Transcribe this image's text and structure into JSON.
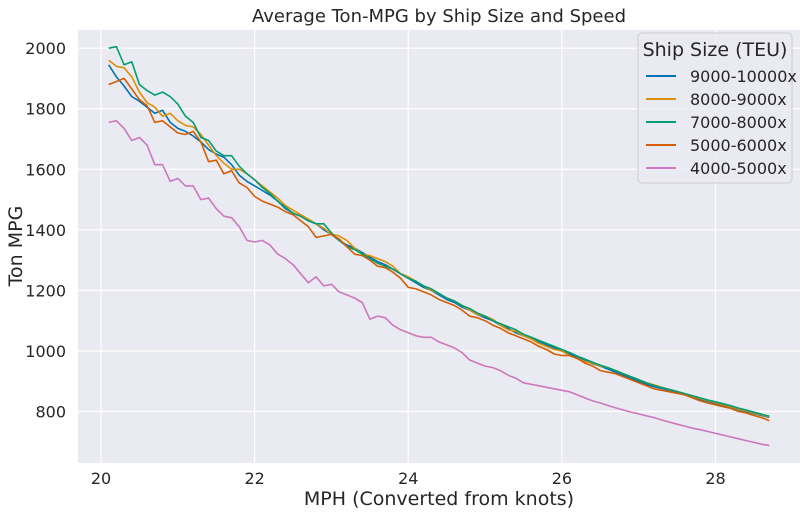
{
  "chart_data": {
    "type": "line",
    "title": "Average Ton-MPG by Ship Size and Speed",
    "xlabel": "MPH (Converted from knots)",
    "ylabel": "Ton MPG",
    "xlim": [
      19.7,
      29.1
    ],
    "ylim": [
      630,
      2060
    ],
    "xticks": [
      20,
      22,
      24,
      26,
      28
    ],
    "yticks": [
      800,
      1000,
      1200,
      1400,
      1600,
      1800,
      2000
    ],
    "grid": true,
    "background": "#eaeaf2",
    "legend": {
      "title": "Ship Size (TEU)",
      "placement": "top-right"
    },
    "x": [
      20.1,
      20.2,
      20.3,
      20.4,
      20.5,
      20.6,
      20.7,
      20.8,
      20.9,
      21.0,
      21.1,
      21.2,
      21.3,
      21.4,
      21.5,
      21.6,
      21.7,
      21.8,
      21.9,
      22.0,
      22.1,
      22.2,
      22.3,
      22.4,
      22.5,
      22.6,
      22.7,
      22.8,
      22.9,
      23.0,
      23.1,
      23.2,
      23.3,
      23.4,
      23.5,
      23.6,
      23.7,
      23.8,
      23.9,
      24.0,
      24.1,
      24.2,
      24.3,
      24.4,
      24.5,
      24.6,
      24.7,
      24.8,
      24.9,
      25.0,
      25.1,
      25.2,
      25.3,
      25.4,
      25.5,
      25.6,
      25.7,
      25.8,
      25.9,
      26.0,
      26.1,
      26.2,
      26.3,
      26.4,
      26.5,
      26.6,
      26.7,
      26.8,
      26.9,
      27.0,
      27.1,
      27.2,
      27.3,
      27.4,
      27.5,
      27.6,
      27.7,
      27.8,
      27.9,
      28.0,
      28.1,
      28.2,
      28.3,
      28.4,
      28.5,
      28.6,
      28.7
    ],
    "series": [
      {
        "name": "9000-10000x",
        "color": "#0173b2",
        "values": [
          1945,
          1905,
          1875,
          1840,
          1825,
          1805,
          1785,
          1795,
          1755,
          1735,
          1725,
          1710,
          1690,
          1665,
          1650,
          1640,
          1615,
          1580,
          1560,
          1545,
          1530,
          1515,
          1495,
          1470,
          1455,
          1445,
          1430,
          1420,
          1400,
          1385,
          1365,
          1350,
          1340,
          1325,
          1310,
          1295,
          1285,
          1270,
          1255,
          1240,
          1225,
          1210,
          1200,
          1185,
          1170,
          1160,
          1145,
          1135,
          1120,
          1110,
          1100,
          1085,
          1075,
          1060,
          1050,
          1040,
          1030,
          1020,
          1010,
          1000,
          990,
          978,
          968,
          958,
          950,
          940,
          930,
          920,
          910,
          900,
          890,
          882,
          876,
          870,
          862,
          855,
          848,
          840,
          833,
          826,
          820,
          813,
          806,
          800,
          793,
          787,
          781
        ]
      },
      {
        "name": "8000-9000x",
        "color": "#de8f05",
        "values": [
          1960,
          1940,
          1935,
          1905,
          1855,
          1820,
          1805,
          1775,
          1785,
          1760,
          1745,
          1740,
          1715,
          1680,
          1645,
          1620,
          1600,
          1600,
          1585,
          1565,
          1545,
          1525,
          1505,
          1480,
          1465,
          1450,
          1435,
          1420,
          1405,
          1385,
          1380,
          1365,
          1340,
          1320,
          1315,
          1305,
          1295,
          1280,
          1255,
          1245,
          1230,
          1215,
          1200,
          1190,
          1175,
          1165,
          1150,
          1135,
          1120,
          1115,
          1105,
          1085,
          1070,
          1065,
          1050,
          1040,
          1025,
          1015,
          1005,
          1000,
          985,
          975,
          965,
          960,
          950,
          945,
          935,
          925,
          915,
          905,
          895,
          888,
          880,
          872,
          866,
          858,
          850,
          843,
          836,
          829,
          823,
          816,
          808,
          802,
          795,
          789,
          783
        ]
      },
      {
        "name": "7000-8000x",
        "color": "#029e73",
        "values": [
          2000,
          2005,
          1945,
          1955,
          1880,
          1860,
          1845,
          1855,
          1840,
          1815,
          1775,
          1755,
          1705,
          1695,
          1660,
          1645,
          1645,
          1610,
          1585,
          1565,
          1540,
          1520,
          1495,
          1475,
          1455,
          1445,
          1430,
          1420,
          1420,
          1390,
          1365,
          1345,
          1335,
          1320,
          1305,
          1290,
          1280,
          1270,
          1255,
          1240,
          1230,
          1215,
          1205,
          1190,
          1175,
          1165,
          1150,
          1140,
          1125,
          1115,
          1100,
          1090,
          1080,
          1070,
          1055,
          1045,
          1035,
          1025,
          1015,
          1005,
          995,
          983,
          973,
          963,
          953,
          945,
          935,
          925,
          915,
          905,
          895,
          886,
          879,
          873,
          866,
          859,
          852,
          845,
          838,
          832,
          826,
          819,
          811,
          805,
          798,
          791,
          785
        ]
      },
      {
        "name": "5000-6000x",
        "color": "#d55e00",
        "values": [
          1880,
          1890,
          1900,
          1865,
          1830,
          1810,
          1755,
          1760,
          1740,
          1720,
          1715,
          1725,
          1690,
          1625,
          1630,
          1585,
          1595,
          1555,
          1540,
          1510,
          1495,
          1485,
          1475,
          1460,
          1450,
          1430,
          1410,
          1375,
          1380,
          1385,
          1370,
          1345,
          1320,
          1315,
          1300,
          1280,
          1275,
          1260,
          1240,
          1210,
          1205,
          1195,
          1185,
          1170,
          1160,
          1150,
          1135,
          1115,
          1110,
          1100,
          1085,
          1075,
          1060,
          1050,
          1040,
          1030,
          1015,
          1005,
          990,
          985,
          985,
          975,
          960,
          950,
          935,
          930,
          925,
          915,
          905,
          895,
          885,
          875,
          870,
          865,
          860,
          855,
          845,
          835,
          828,
          822,
          816,
          810,
          800,
          795,
          787,
          780,
          770
        ]
      },
      {
        "name": "4000-5000x",
        "color": "#cc78bc",
        "values": [
          1755,
          1760,
          1735,
          1695,
          1705,
          1680,
          1615,
          1615,
          1560,
          1570,
          1545,
          1545,
          1500,
          1505,
          1470,
          1445,
          1440,
          1410,
          1365,
          1360,
          1365,
          1350,
          1320,
          1305,
          1285,
          1255,
          1225,
          1245,
          1215,
          1220,
          1195,
          1185,
          1175,
          1160,
          1105,
          1115,
          1110,
          1085,
          1070,
          1060,
          1050,
          1045,
          1045,
          1030,
          1020,
          1010,
          995,
          970,
          960,
          950,
          945,
          935,
          920,
          910,
          895,
          890,
          885,
          880,
          875,
          870,
          865,
          855,
          845,
          835,
          828,
          820,
          812,
          805,
          798,
          792,
          786,
          780,
          772,
          765,
          758,
          752,
          745,
          740,
          734,
          728,
          722,
          716,
          710,
          704,
          698,
          692,
          688
        ]
      }
    ]
  }
}
